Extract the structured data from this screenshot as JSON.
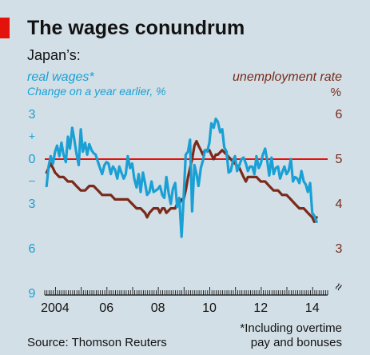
{
  "chart_data": {
    "type": "line",
    "title": "The wages conundrum",
    "subtitle": "Japan’s:",
    "left_axis": {
      "label": "real wages*",
      "sublabel": "Change on a year earlier, %",
      "ticks": [
        "3",
        "0",
        "3",
        "6",
        "9"
      ],
      "tick_values": [
        3,
        0,
        -3,
        -6,
        -9
      ],
      "plus_sign": "+",
      "minus_sign": "–",
      "ylim": [
        -9,
        3
      ],
      "color": "#1aa0d5"
    },
    "right_axis": {
      "label": "unemployment rate",
      "unit": "%",
      "ticks": [
        "6",
        "5",
        "4",
        "3"
      ],
      "tick_values": [
        6,
        5,
        4,
        3
      ],
      "ylim": [
        3,
        6
      ],
      "color": "#7a2a1a"
    },
    "x_ticks": [
      "2004",
      "06",
      "08",
      "10",
      "12",
      "14"
    ],
    "x_tick_years": [
      2004,
      2006,
      2008,
      2010,
      2012,
      2014
    ],
    "xlim": [
      2003.6,
      2014.6
    ],
    "zero_line_color": "#e3120b",
    "axis_break": "≈",
    "series": [
      {
        "name": "real wages*",
        "axis": "left",
        "color": "#1aa0d5",
        "x": [
          2003.67,
          2003.75,
          2003.83,
          2003.92,
          2004.0,
          2004.08,
          2004.17,
          2004.25,
          2004.33,
          2004.42,
          2004.5,
          2004.58,
          2004.67,
          2004.75,
          2004.83,
          2004.92,
          2005.0,
          2005.08,
          2005.17,
          2005.25,
          2005.33,
          2005.42,
          2005.5,
          2005.58,
          2005.67,
          2005.75,
          2005.83,
          2005.92,
          2006.0,
          2006.08,
          2006.17,
          2006.25,
          2006.33,
          2006.42,
          2006.5,
          2006.58,
          2006.67,
          2006.75,
          2006.83,
          2006.92,
          2007.0,
          2007.08,
          2007.17,
          2007.25,
          2007.33,
          2007.42,
          2007.5,
          2007.58,
          2007.67,
          2007.75,
          2007.83,
          2007.92,
          2008.0,
          2008.08,
          2008.17,
          2008.25,
          2008.33,
          2008.42,
          2008.5,
          2008.58,
          2008.67,
          2008.75,
          2008.83,
          2008.92,
          2009.0,
          2009.08,
          2009.17,
          2009.25,
          2009.33,
          2009.42,
          2009.5,
          2009.58,
          2009.67,
          2009.75,
          2009.83,
          2009.92,
          2010.0,
          2010.08,
          2010.17,
          2010.25,
          2010.33,
          2010.42,
          2010.5,
          2010.58,
          2010.67,
          2010.75,
          2010.83,
          2010.92,
          2011.0,
          2011.08,
          2011.17,
          2011.25,
          2011.33,
          2011.42,
          2011.5,
          2011.58,
          2011.67,
          2011.75,
          2011.83,
          2011.92,
          2012.0,
          2012.08,
          2012.17,
          2012.25,
          2012.33,
          2012.42,
          2012.5,
          2012.58,
          2012.67,
          2012.75,
          2012.83,
          2012.92,
          2013.0,
          2013.08,
          2013.17,
          2013.25,
          2013.33,
          2013.42,
          2013.5,
          2013.58,
          2013.67,
          2013.75,
          2013.83,
          2013.92,
          2014.0,
          2014.08,
          2014.17
        ],
        "values": [
          -1.8,
          -0.5,
          0.2,
          -0.3,
          0.5,
          0.9,
          0.2,
          1.1,
          0.3,
          -0.2,
          1.5,
          0.7,
          2.1,
          1.3,
          0.4,
          -0.4,
          2.0,
          0.5,
          1.1,
          0.3,
          1.0,
          0.6,
          0.4,
          0.3,
          -0.2,
          -0.6,
          -1.0,
          -0.4,
          -0.2,
          -0.3,
          -1.0,
          -0.5,
          -0.7,
          -1.3,
          -0.5,
          -0.9,
          -1.3,
          -1.0,
          0.2,
          -0.6,
          -0.3,
          -1.3,
          -1.9,
          -1.0,
          -2.2,
          -0.9,
          -1.6,
          -2.4,
          -2.2,
          -1.5,
          -2.2,
          -2.1,
          -2.0,
          -1.8,
          -2.4,
          -2.6,
          -1.2,
          -2.3,
          -3.0,
          -2.0,
          -1.6,
          -3.2,
          -2.6,
          -5.2,
          -2.6,
          0.3,
          0.5,
          1.3,
          -3.5,
          -0.4,
          -1.0,
          -1.8,
          -0.6,
          -0.1,
          0.6,
          0.5,
          1.1,
          2.4,
          2.1,
          2.7,
          2.5,
          1.8,
          2.0,
          0.8,
          0.5,
          -0.9,
          -0.8,
          -0.1,
          0.2,
          -0.8,
          -0.4,
          0.0,
          0.1,
          -0.3,
          -0.8,
          -0.5,
          -0.5,
          -1.0,
          0.2,
          -0.6,
          -0.3,
          0.3,
          0.7,
          -0.1,
          -1.1,
          0.1,
          -1.0,
          -0.6,
          -0.5,
          -1.3,
          -0.9,
          -0.5,
          -1.0,
          -0.8,
          0.0,
          -1.5,
          -1.2,
          -1.3,
          -1.6,
          -0.8,
          -1.5,
          -1.7,
          -2.2,
          -1.6,
          -3.6,
          -3.8,
          -4.2
        ]
      },
      {
        "name": "unemployment rate",
        "axis": "right",
        "color": "#7a2a1a",
        "x": [
          2003.67,
          2003.75,
          2003.83,
          2003.92,
          2004.0,
          2004.17,
          2004.33,
          2004.5,
          2004.67,
          2004.83,
          2005.0,
          2005.17,
          2005.33,
          2005.5,
          2005.67,
          2005.83,
          2006.0,
          2006.17,
          2006.33,
          2006.5,
          2006.67,
          2006.83,
          2007.0,
          2007.17,
          2007.33,
          2007.5,
          2007.58,
          2007.67,
          2007.83,
          2008.0,
          2008.08,
          2008.17,
          2008.25,
          2008.33,
          2008.5,
          2008.67,
          2008.75,
          2008.83,
          2008.92,
          2009.0,
          2009.08,
          2009.17,
          2009.25,
          2009.33,
          2009.42,
          2009.5,
          2009.58,
          2009.67,
          2009.75,
          2009.83,
          2009.92,
          2010.0,
          2010.08,
          2010.17,
          2010.25,
          2010.33,
          2010.5,
          2010.67,
          2010.83,
          2011.0,
          2011.17,
          2011.33,
          2011.42,
          2011.5,
          2011.67,
          2011.83,
          2012.0,
          2012.17,
          2012.33,
          2012.5,
          2012.67,
          2012.83,
          2013.0,
          2013.17,
          2013.33,
          2013.5,
          2013.67,
          2013.83,
          2014.0,
          2014.08,
          2014.17
        ],
        "values": [
          4.7,
          4.8,
          4.9,
          4.8,
          4.7,
          4.6,
          4.6,
          4.5,
          4.5,
          4.4,
          4.3,
          4.3,
          4.4,
          4.4,
          4.3,
          4.2,
          4.2,
          4.2,
          4.1,
          4.1,
          4.1,
          4.1,
          4.0,
          3.9,
          3.9,
          3.8,
          3.7,
          3.8,
          3.9,
          3.9,
          3.8,
          3.9,
          3.9,
          3.8,
          3.9,
          3.9,
          4.0,
          4.0,
          4.1,
          4.1,
          4.3,
          4.6,
          4.8,
          5.0,
          5.3,
          5.4,
          5.3,
          5.2,
          5.1,
          5.2,
          5.2,
          5.2,
          5.1,
          5.0,
          5.1,
          5.1,
          5.2,
          5.1,
          5.0,
          4.9,
          4.8,
          4.6,
          4.5,
          4.6,
          4.6,
          4.6,
          4.5,
          4.5,
          4.4,
          4.3,
          4.3,
          4.2,
          4.2,
          4.1,
          4.0,
          3.9,
          3.9,
          3.8,
          3.7,
          3.6,
          3.7
        ]
      }
    ],
    "source": "Source: Thomson Reuters",
    "footnote": [
      "*Including overtime",
      "pay and bonuses"
    ],
    "grid": false
  }
}
